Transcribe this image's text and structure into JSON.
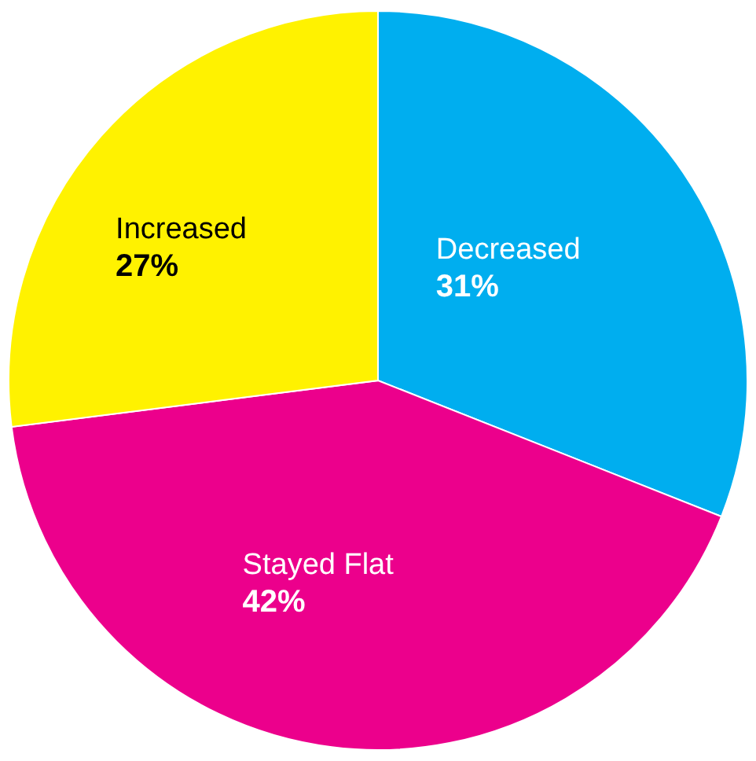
{
  "chart_data": {
    "type": "pie",
    "categories": [
      "Decreased",
      "Stayed Flat",
      "Increased"
    ],
    "values": [
      31,
      42,
      27
    ],
    "colors": [
      "#00aeef",
      "#ec008c",
      "#fff200"
    ],
    "value_labels": [
      "31%",
      "42%",
      "27%"
    ]
  }
}
